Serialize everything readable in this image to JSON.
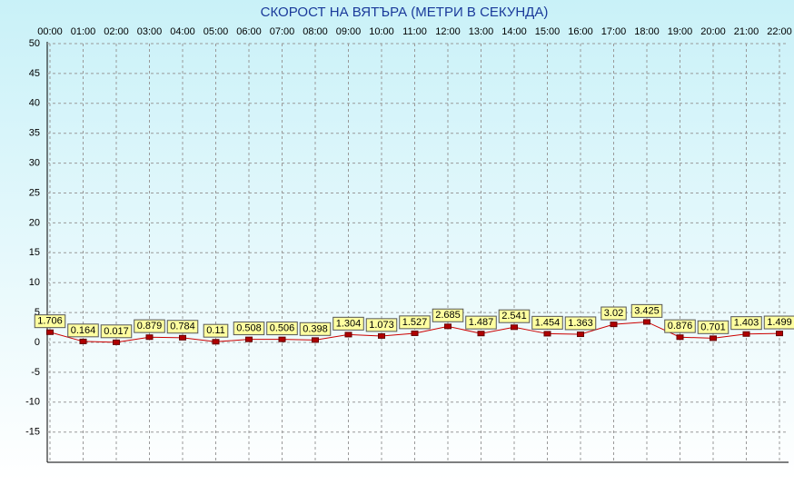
{
  "chart_data": {
    "type": "line",
    "title": "СКОРОСТ НА ВЯТЪРА (МЕТРИ В СЕКУНДА)",
    "categories": [
      "00:00",
      "01:00",
      "02:00",
      "03:00",
      "04:00",
      "05:00",
      "06:00",
      "07:00",
      "08:00",
      "09:00",
      "10:00",
      "11:00",
      "12:00",
      "13:00",
      "14:00",
      "15:00",
      "16:00",
      "17:00",
      "18:00",
      "19:00",
      "20:00",
      "21:00",
      "22:00"
    ],
    "series": [
      {
        "color": "#cc0000",
        "values": [
          1.706,
          0.164,
          0.017,
          0.879,
          0.784,
          0.11,
          0.508,
          0.506,
          0.398,
          1.304,
          1.073,
          1.527,
          2.685,
          1.487,
          2.541,
          1.454,
          1.363,
          3.02,
          3.425,
          0.876,
          0.701,
          1.403,
          1.499
        ]
      }
    ],
    "ylim": [
      -20,
      50
    ],
    "yticks": [
      -15,
      -10,
      -5,
      0,
      5,
      10,
      15,
      20,
      25,
      30,
      35,
      40,
      45,
      50
    ],
    "grid": true
  }
}
